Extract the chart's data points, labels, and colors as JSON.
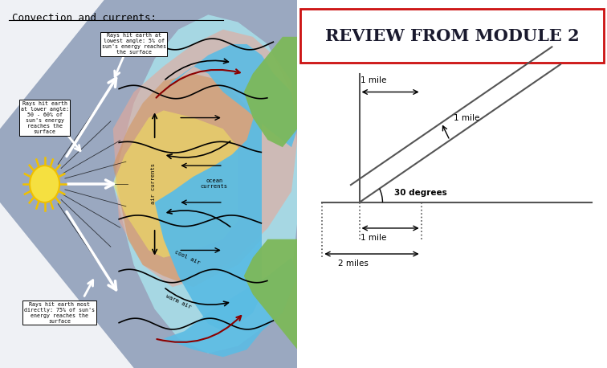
{
  "title_left": "Convection and currents:",
  "title_right": "REVIEW FROM MODULE 2",
  "callout1_text": "Rays hit earth at\nlowest angle: 5% of\nsun's energy reaches\nthe surface",
  "callout2_text": "Rays hit earth\nat lower angle:\n50 - 60% of\nsun's energy\nreaches the\nsurface",
  "callout3_text": "Rays hit earth most\ndirectly: 75% of sun's\nenergy reaches the\nsurface",
  "label_air": "air currents",
  "label_ocean": "ocean\ncurrents",
  "label_cool": "cool air",
  "label_warm": "warm air",
  "bg_gray_blue": "#9aa8c0",
  "bg_white_tri1": "#dce4ee",
  "bg_white_tri2": "#dce4ee",
  "color_ocean_blue": "#5bbce4",
  "color_cyan_light": "#a8dde8",
  "color_green_land": "#7db85a",
  "color_pink": "#e8a898",
  "color_orange": "#d49050",
  "color_yellow": "#f0e060",
  "sun_body": "#f5e040",
  "sun_ray": "#f0c000",
  "right_bg": "#ffffff",
  "title_box_color": "#cc1111",
  "line_color": "#555555"
}
